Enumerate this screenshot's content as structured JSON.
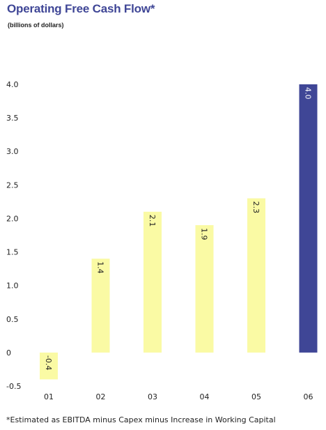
{
  "title": "Operating Free Cash Flow*",
  "subtitle": "(billions of dollars)",
  "footnote": "*Estimated as EBITDA minus Capex minus Increase in Working Capital",
  "colors": {
    "bar": "#fafaa4",
    "highlight": "#3f4696",
    "title": "#3f4696",
    "text": "#222222"
  },
  "chart_data": {
    "type": "bar",
    "categories": [
      "01",
      "02",
      "03",
      "04",
      "05",
      "06"
    ],
    "values": [
      -0.4,
      1.4,
      2.1,
      1.9,
      2.3,
      4.0
    ],
    "value_labels": [
      "-0.4",
      "1.4",
      "2.1",
      "1.9",
      "2.3",
      "4.0"
    ],
    "highlight_index": 5,
    "ylim": [
      -0.5,
      4.0
    ],
    "yticks": [
      "4.0",
      "3.5",
      "3.0",
      "2.5",
      "2.0",
      "1.5",
      "1.0",
      "0.5",
      "0",
      "-0.5"
    ],
    "grid": false,
    "legend": "none"
  }
}
